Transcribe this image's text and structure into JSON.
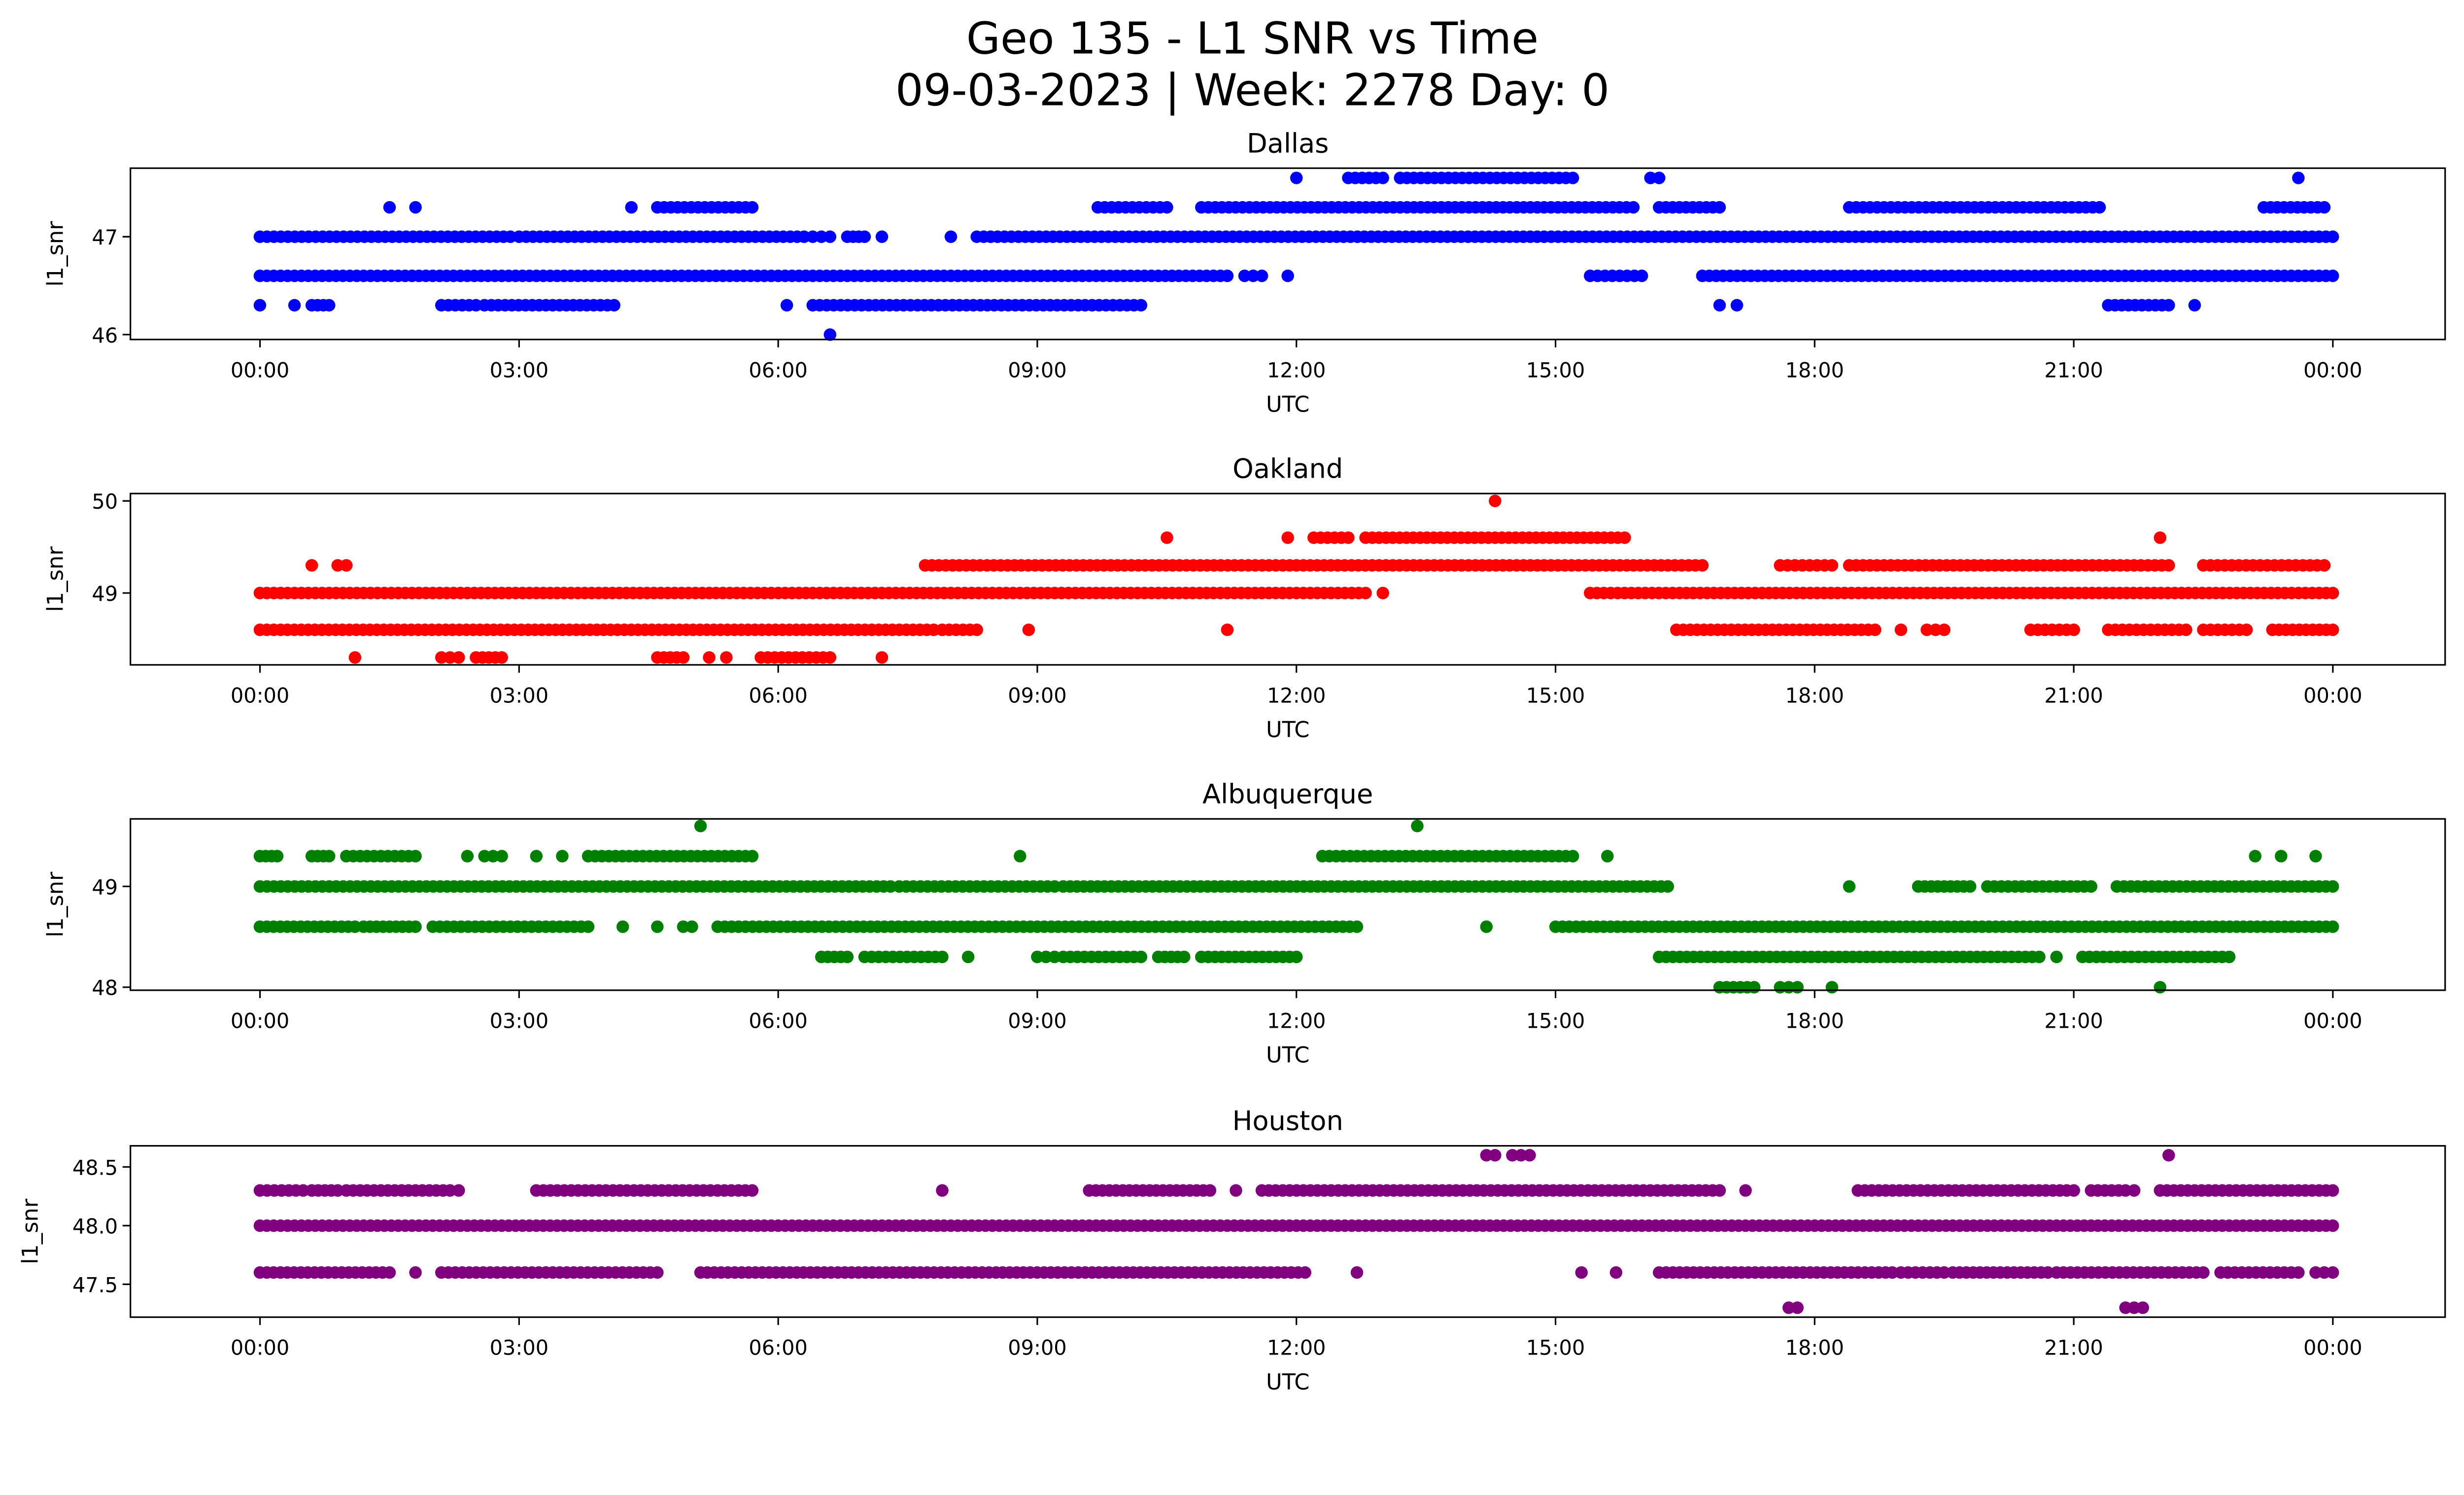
{
  "figure": {
    "title_line1": "Geo 135 - L1 SNR vs Time",
    "title_line2": "09-03-2023 | Week: 2278 Day: 0"
  },
  "chart_data": [
    {
      "type": "scatter",
      "title": "Dallas",
      "xlabel": "UTC",
      "ylabel": "l1_snr",
      "color": "#0000ff",
      "xlim_hours": [
        -1.5,
        25.3
      ],
      "ylim": [
        45.95,
        47.7
      ],
      "xticks": [
        "00:00",
        "03:00",
        "06:00",
        "09:00",
        "12:00",
        "15:00",
        "18:00",
        "21:00",
        "00:00"
      ],
      "yticks": [
        {
          "v": 46,
          "label": "46"
        },
        {
          "v": 47,
          "label": "47"
        }
      ],
      "runs": [
        [
          0,
          2.9,
          47.0
        ],
        [
          3.0,
          6.3,
          47.0
        ],
        [
          6.4,
          6.6,
          47.0
        ],
        [
          6.8,
          7.0,
          47.0
        ],
        [
          7.2,
          7.2,
          47.0
        ],
        [
          8.0,
          8.0,
          47.0
        ],
        [
          8.3,
          24,
          47.0
        ],
        [
          0,
          11.2,
          46.6
        ],
        [
          11.4,
          11.6,
          46.6
        ],
        [
          11.9,
          11.9,
          46.6
        ],
        [
          15.4,
          16.0,
          46.6
        ],
        [
          16.7,
          24,
          46.6
        ],
        [
          0,
          0,
          46.3
        ],
        [
          0.4,
          0.4,
          46.3
        ],
        [
          0.6,
          0.8,
          46.3
        ],
        [
          2.1,
          2.5,
          46.3
        ],
        [
          2.6,
          4.1,
          46.3
        ],
        [
          6.1,
          6.1,
          46.3
        ],
        [
          6.4,
          10.2,
          46.3
        ],
        [
          21.4,
          22.1,
          46.3
        ],
        [
          22.4,
          22.4,
          46.3
        ],
        [
          1.5,
          1.5,
          47.3
        ],
        [
          1.8,
          1.8,
          47.3
        ],
        [
          4.3,
          4.3,
          47.3
        ],
        [
          4.6,
          5.7,
          47.3
        ],
        [
          9.7,
          10.5,
          47.3
        ],
        [
          10.9,
          15.9,
          47.3
        ],
        [
          16.2,
          16.9,
          47.3
        ],
        [
          18.4,
          21.3,
          47.3
        ],
        [
          23.2,
          23.9,
          47.3
        ],
        [
          12.0,
          12.0,
          47.6
        ],
        [
          12.6,
          13.0,
          47.6
        ],
        [
          13.2,
          15.2,
          47.6
        ],
        [
          16.1,
          16.2,
          47.6
        ],
        [
          23.6,
          23.6,
          47.6
        ],
        [
          16.9,
          16.9,
          46.3
        ],
        [
          17.1,
          17.1,
          46.3
        ],
        [
          6.6,
          6.6,
          46.0
        ]
      ]
    },
    {
      "type": "scatter",
      "title": "Oakland",
      "xlabel": "UTC",
      "ylabel": "l1_snr",
      "color": "#ff0000",
      "xlim_hours": [
        -1.5,
        25.3
      ],
      "ylim": [
        48.22,
        50.08
      ],
      "xticks": [
        "00:00",
        "03:00",
        "06:00",
        "09:00",
        "12:00",
        "15:00",
        "18:00",
        "21:00",
        "00:00"
      ],
      "yticks": [
        {
          "v": 49,
          "label": "49"
        },
        {
          "v": 50,
          "label": "50"
        }
      ],
      "runs": [
        [
          0,
          12.8,
          49.0
        ],
        [
          13.0,
          13.0,
          49.0
        ],
        [
          15.4,
          24,
          49.0
        ],
        [
          0,
          7.8,
          48.6
        ],
        [
          7.9,
          8.3,
          48.6
        ],
        [
          8.9,
          8.9,
          48.6
        ],
        [
          11.2,
          11.2,
          48.6
        ],
        [
          16.4,
          18.7,
          48.6
        ],
        [
          19.0,
          19.0,
          48.6
        ],
        [
          19.3,
          19.5,
          48.6
        ],
        [
          20.5,
          21.0,
          48.6
        ],
        [
          21.4,
          22.3,
          48.6
        ],
        [
          22.5,
          23.0,
          48.6
        ],
        [
          23.3,
          24,
          48.6
        ],
        [
          1.1,
          1.1,
          48.3
        ],
        [
          2.1,
          2.3,
          48.3
        ],
        [
          2.5,
          2.8,
          48.3
        ],
        [
          4.6,
          4.9,
          48.3
        ],
        [
          5.2,
          5.2,
          48.3
        ],
        [
          5.4,
          5.4,
          48.3
        ],
        [
          5.8,
          6.6,
          48.3
        ],
        [
          7.2,
          7.2,
          48.3
        ],
        [
          0.6,
          0.6,
          49.3
        ],
        [
          0.9,
          1.0,
          49.3
        ],
        [
          7.7,
          16.7,
          49.3
        ],
        [
          17.6,
          18.2,
          49.3
        ],
        [
          18.4,
          22.1,
          49.3
        ],
        [
          22.5,
          23.9,
          49.3
        ],
        [
          10.5,
          10.5,
          49.6
        ],
        [
          11.9,
          11.9,
          49.6
        ],
        [
          12.2,
          12.6,
          49.6
        ],
        [
          12.8,
          15.8,
          49.6
        ],
        [
          22.0,
          22.0,
          49.6
        ],
        [
          14.3,
          14.3,
          50.0
        ]
      ]
    },
    {
      "type": "scatter",
      "title": "Albuquerque",
      "xlabel": "UTC",
      "ylabel": "l1_snr",
      "color": "#008000",
      "xlim_hours": [
        -1.5,
        25.3
      ],
      "ylim": [
        47.97,
        49.67
      ],
      "xticks": [
        "00:00",
        "03:00",
        "06:00",
        "09:00",
        "12:00",
        "15:00",
        "18:00",
        "21:00",
        "00:00"
      ],
      "yticks": [
        {
          "v": 48,
          "label": "48"
        },
        {
          "v": 49,
          "label": "49"
        }
      ],
      "runs": [
        [
          0,
          7.3,
          49.0
        ],
        [
          7.4,
          9.2,
          49.0
        ],
        [
          9.3,
          16.3,
          49.0
        ],
        [
          18.4,
          18.4,
          49.0
        ],
        [
          19.2,
          19.8,
          49.0
        ],
        [
          20.0,
          21.2,
          49.0
        ],
        [
          21.5,
          24,
          49.0
        ],
        [
          0,
          1.1,
          48.6
        ],
        [
          1.2,
          1.8,
          48.6
        ],
        [
          2.0,
          3.8,
          48.6
        ],
        [
          4.2,
          4.2,
          48.6
        ],
        [
          4.6,
          4.6,
          48.6
        ],
        [
          4.9,
          5.0,
          48.6
        ],
        [
          5.3,
          12.7,
          48.6
        ],
        [
          14.2,
          14.2,
          48.6
        ],
        [
          15.0,
          24,
          48.6
        ],
        [
          6.5,
          6.8,
          48.3
        ],
        [
          7.0,
          7.9,
          48.3
        ],
        [
          8.2,
          8.2,
          48.3
        ],
        [
          9.0,
          9.2,
          48.3
        ],
        [
          9.3,
          10.2,
          48.3
        ],
        [
          10.4,
          10.7,
          48.3
        ],
        [
          10.9,
          12.0,
          48.3
        ],
        [
          16.2,
          20.6,
          48.3
        ],
        [
          20.8,
          20.8,
          48.3
        ],
        [
          21.1,
          22.8,
          48.3
        ],
        [
          0,
          0.2,
          49.3
        ],
        [
          0.6,
          0.8,
          49.3
        ],
        [
          1.0,
          1.8,
          49.3
        ],
        [
          2.4,
          2.4,
          49.3
        ],
        [
          2.6,
          2.8,
          49.3
        ],
        [
          3.2,
          3.2,
          49.3
        ],
        [
          3.5,
          3.5,
          49.3
        ],
        [
          3.8,
          5.7,
          49.3
        ],
        [
          8.8,
          8.8,
          49.3
        ],
        [
          12.3,
          15.2,
          49.3
        ],
        [
          15.6,
          15.6,
          49.3
        ],
        [
          23.1,
          23.1,
          49.3
        ],
        [
          23.4,
          23.4,
          49.3
        ],
        [
          23.8,
          23.8,
          49.3
        ],
        [
          5.1,
          5.1,
          49.6
        ],
        [
          13.4,
          13.4,
          49.6
        ],
        [
          16.9,
          17.3,
          48.0
        ],
        [
          17.6,
          17.8,
          48.0
        ],
        [
          18.2,
          18.2,
          48.0
        ],
        [
          22.0,
          22.0,
          48.0
        ]
      ]
    },
    {
      "type": "scatter",
      "title": "Houston",
      "xlabel": "UTC",
      "ylabel": "l1_snr",
      "color": "#800080",
      "xlim_hours": [
        -1.5,
        25.3
      ],
      "ylim": [
        47.22,
        48.68
      ],
      "xticks": [
        "00:00",
        "03:00",
        "06:00",
        "09:00",
        "12:00",
        "15:00",
        "18:00",
        "21:00",
        "00:00"
      ],
      "yticks": [
        {
          "v": 47.5,
          "label": "47.5"
        },
        {
          "v": 48.0,
          "label": "48.0"
        },
        {
          "v": 48.5,
          "label": "48.5"
        }
      ],
      "runs": [
        [
          0,
          24,
          48.0
        ],
        [
          0,
          0.5,
          48.3
        ],
        [
          0.6,
          0.9,
          48.3
        ],
        [
          1.0,
          2.2,
          48.3
        ],
        [
          2.3,
          2.3,
          48.3
        ],
        [
          3.2,
          5.7,
          48.3
        ],
        [
          7.9,
          7.9,
          48.3
        ],
        [
          9.6,
          11.0,
          48.3
        ],
        [
          11.3,
          11.3,
          48.3
        ],
        [
          11.6,
          16.9,
          48.3
        ],
        [
          17.2,
          17.2,
          48.3
        ],
        [
          18.5,
          21.0,
          48.3
        ],
        [
          21.2,
          21.6,
          48.3
        ],
        [
          21.7,
          21.7,
          48.3
        ],
        [
          22.0,
          24,
          48.3
        ],
        [
          0,
          1.5,
          47.6
        ],
        [
          1.8,
          1.8,
          47.6
        ],
        [
          2.1,
          4.6,
          47.6
        ],
        [
          5.1,
          12.1,
          47.6
        ],
        [
          12.7,
          12.7,
          47.6
        ],
        [
          15.3,
          15.3,
          47.6
        ],
        [
          15.7,
          15.7,
          47.6
        ],
        [
          16.2,
          18.9,
          47.6
        ],
        [
          19.0,
          19.5,
          47.6
        ],
        [
          19.6,
          20.7,
          47.6
        ],
        [
          20.8,
          22.5,
          47.6
        ],
        [
          22.7,
          23.6,
          47.6
        ],
        [
          23.8,
          24,
          47.6
        ],
        [
          14.2,
          14.3,
          48.6
        ],
        [
          14.5,
          14.7,
          48.6
        ],
        [
          22.1,
          22.1,
          48.6
        ],
        [
          17.7,
          17.8,
          47.3
        ],
        [
          21.6,
          21.8,
          47.3
        ]
      ]
    }
  ]
}
